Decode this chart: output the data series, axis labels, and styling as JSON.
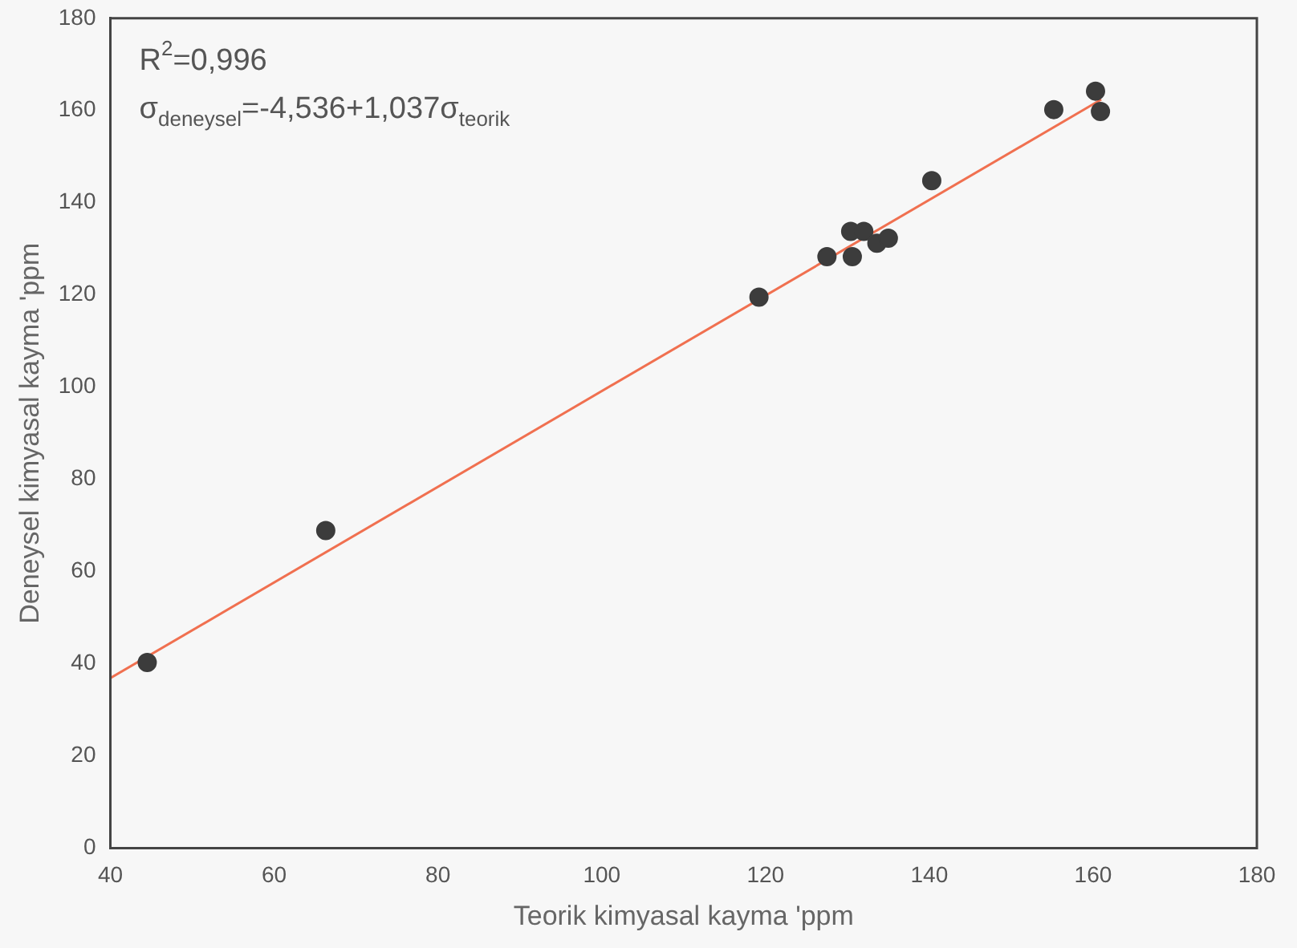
{
  "chart_data": {
    "type": "scatter",
    "xlabel": "Teorik kimyasal kayma 'ppm",
    "ylabel": "Deneysel kimyasal kayma 'ppm",
    "annotations": [
      "R$^{2}$=0,996",
      "σ$_{deneysel}$=-4,536+1,037σ$_{teorik}$"
    ],
    "series": [
      {
        "color": "#3c3c3c",
        "marker": "circle",
        "x": [
          44.5,
          66.3,
          119.2,
          127.5,
          130.4,
          132,
          130.6,
          133.6,
          135,
          140.3,
          155.2,
          160.3,
          160.9
        ],
        "values": [
          40.3,
          68.9,
          119.5,
          128.3,
          133.8,
          133.8,
          128.3,
          131.2,
          132.3,
          144.8,
          160.2,
          164.2,
          159.8
        ]
      },
      {
        "type": "line",
        "color": "#f07050",
        "marker": "none",
        "x": [
          40,
          161
        ],
        "values": [
          36.9,
          162.4
        ]
      }
    ],
    "grid": false,
    "legend": false,
    "xlim": [
      40,
      180
    ],
    "xticks": [
      40,
      60,
      80,
      100,
      120,
      140,
      160,
      180
    ],
    "ylim": [
      0,
      180
    ],
    "yticks": [
      0,
      20,
      40,
      60,
      80,
      100,
      120,
      140,
      160,
      180
    ]
  }
}
